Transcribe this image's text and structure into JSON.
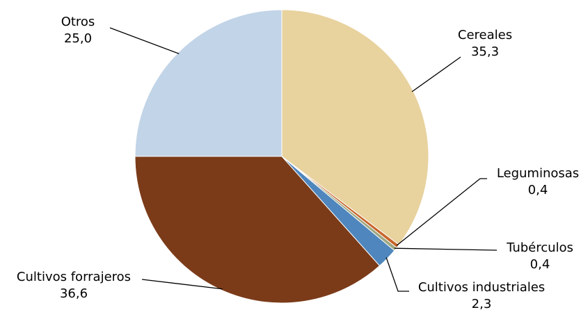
{
  "chart_data": {
    "type": "pie",
    "title": "",
    "start_angle_deg": 0,
    "direction": "clockwise",
    "slices": [
      {
        "label": "Cereales",
        "value": 35.3,
        "display": "35,3",
        "color": "#E8D29E"
      },
      {
        "label": "Leguminosas",
        "value": 0.4,
        "display": "0,4",
        "color": "#C8642A"
      },
      {
        "label": "Tubérculos",
        "value": 0.4,
        "display": "0,4",
        "color": "#9EA882"
      },
      {
        "label": "Cultivos industriales",
        "value": 2.3,
        "display": "2,3",
        "color": "#4F86BD"
      },
      {
        "label": "Cultivos forrajeros",
        "value": 36.6,
        "display": "36,6",
        "color": "#7B3B19"
      },
      {
        "label": "Otros",
        "value": 25.0,
        "display": "25,0",
        "color": "#C2D4E7"
      }
    ]
  }
}
